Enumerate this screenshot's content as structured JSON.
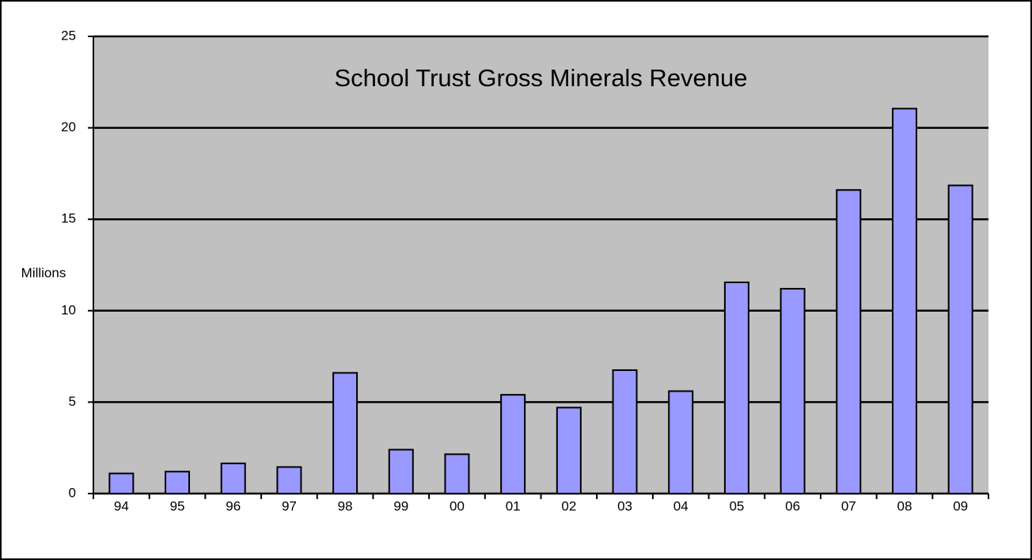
{
  "chart_data": {
    "type": "bar",
    "title": "School Trust Gross Minerals Revenue",
    "y_label": "Millions",
    "categories": [
      "94",
      "95",
      "96",
      "97",
      "98",
      "99",
      "00",
      "01",
      "02",
      "03",
      "04",
      "05",
      "06",
      "07",
      "08",
      "09"
    ],
    "values": [
      1.1,
      1.2,
      1.65,
      1.45,
      6.6,
      2.4,
      2.15,
      5.4,
      4.7,
      6.75,
      5.6,
      11.55,
      11.2,
      16.6,
      21.05,
      16.85
    ],
    "color": "#9999ff",
    "plot_background": "#c0c0c0",
    "ylim": [
      0,
      25
    ],
    "yticks": [
      0,
      5,
      10,
      15,
      20,
      25
    ],
    "grid": true
  }
}
